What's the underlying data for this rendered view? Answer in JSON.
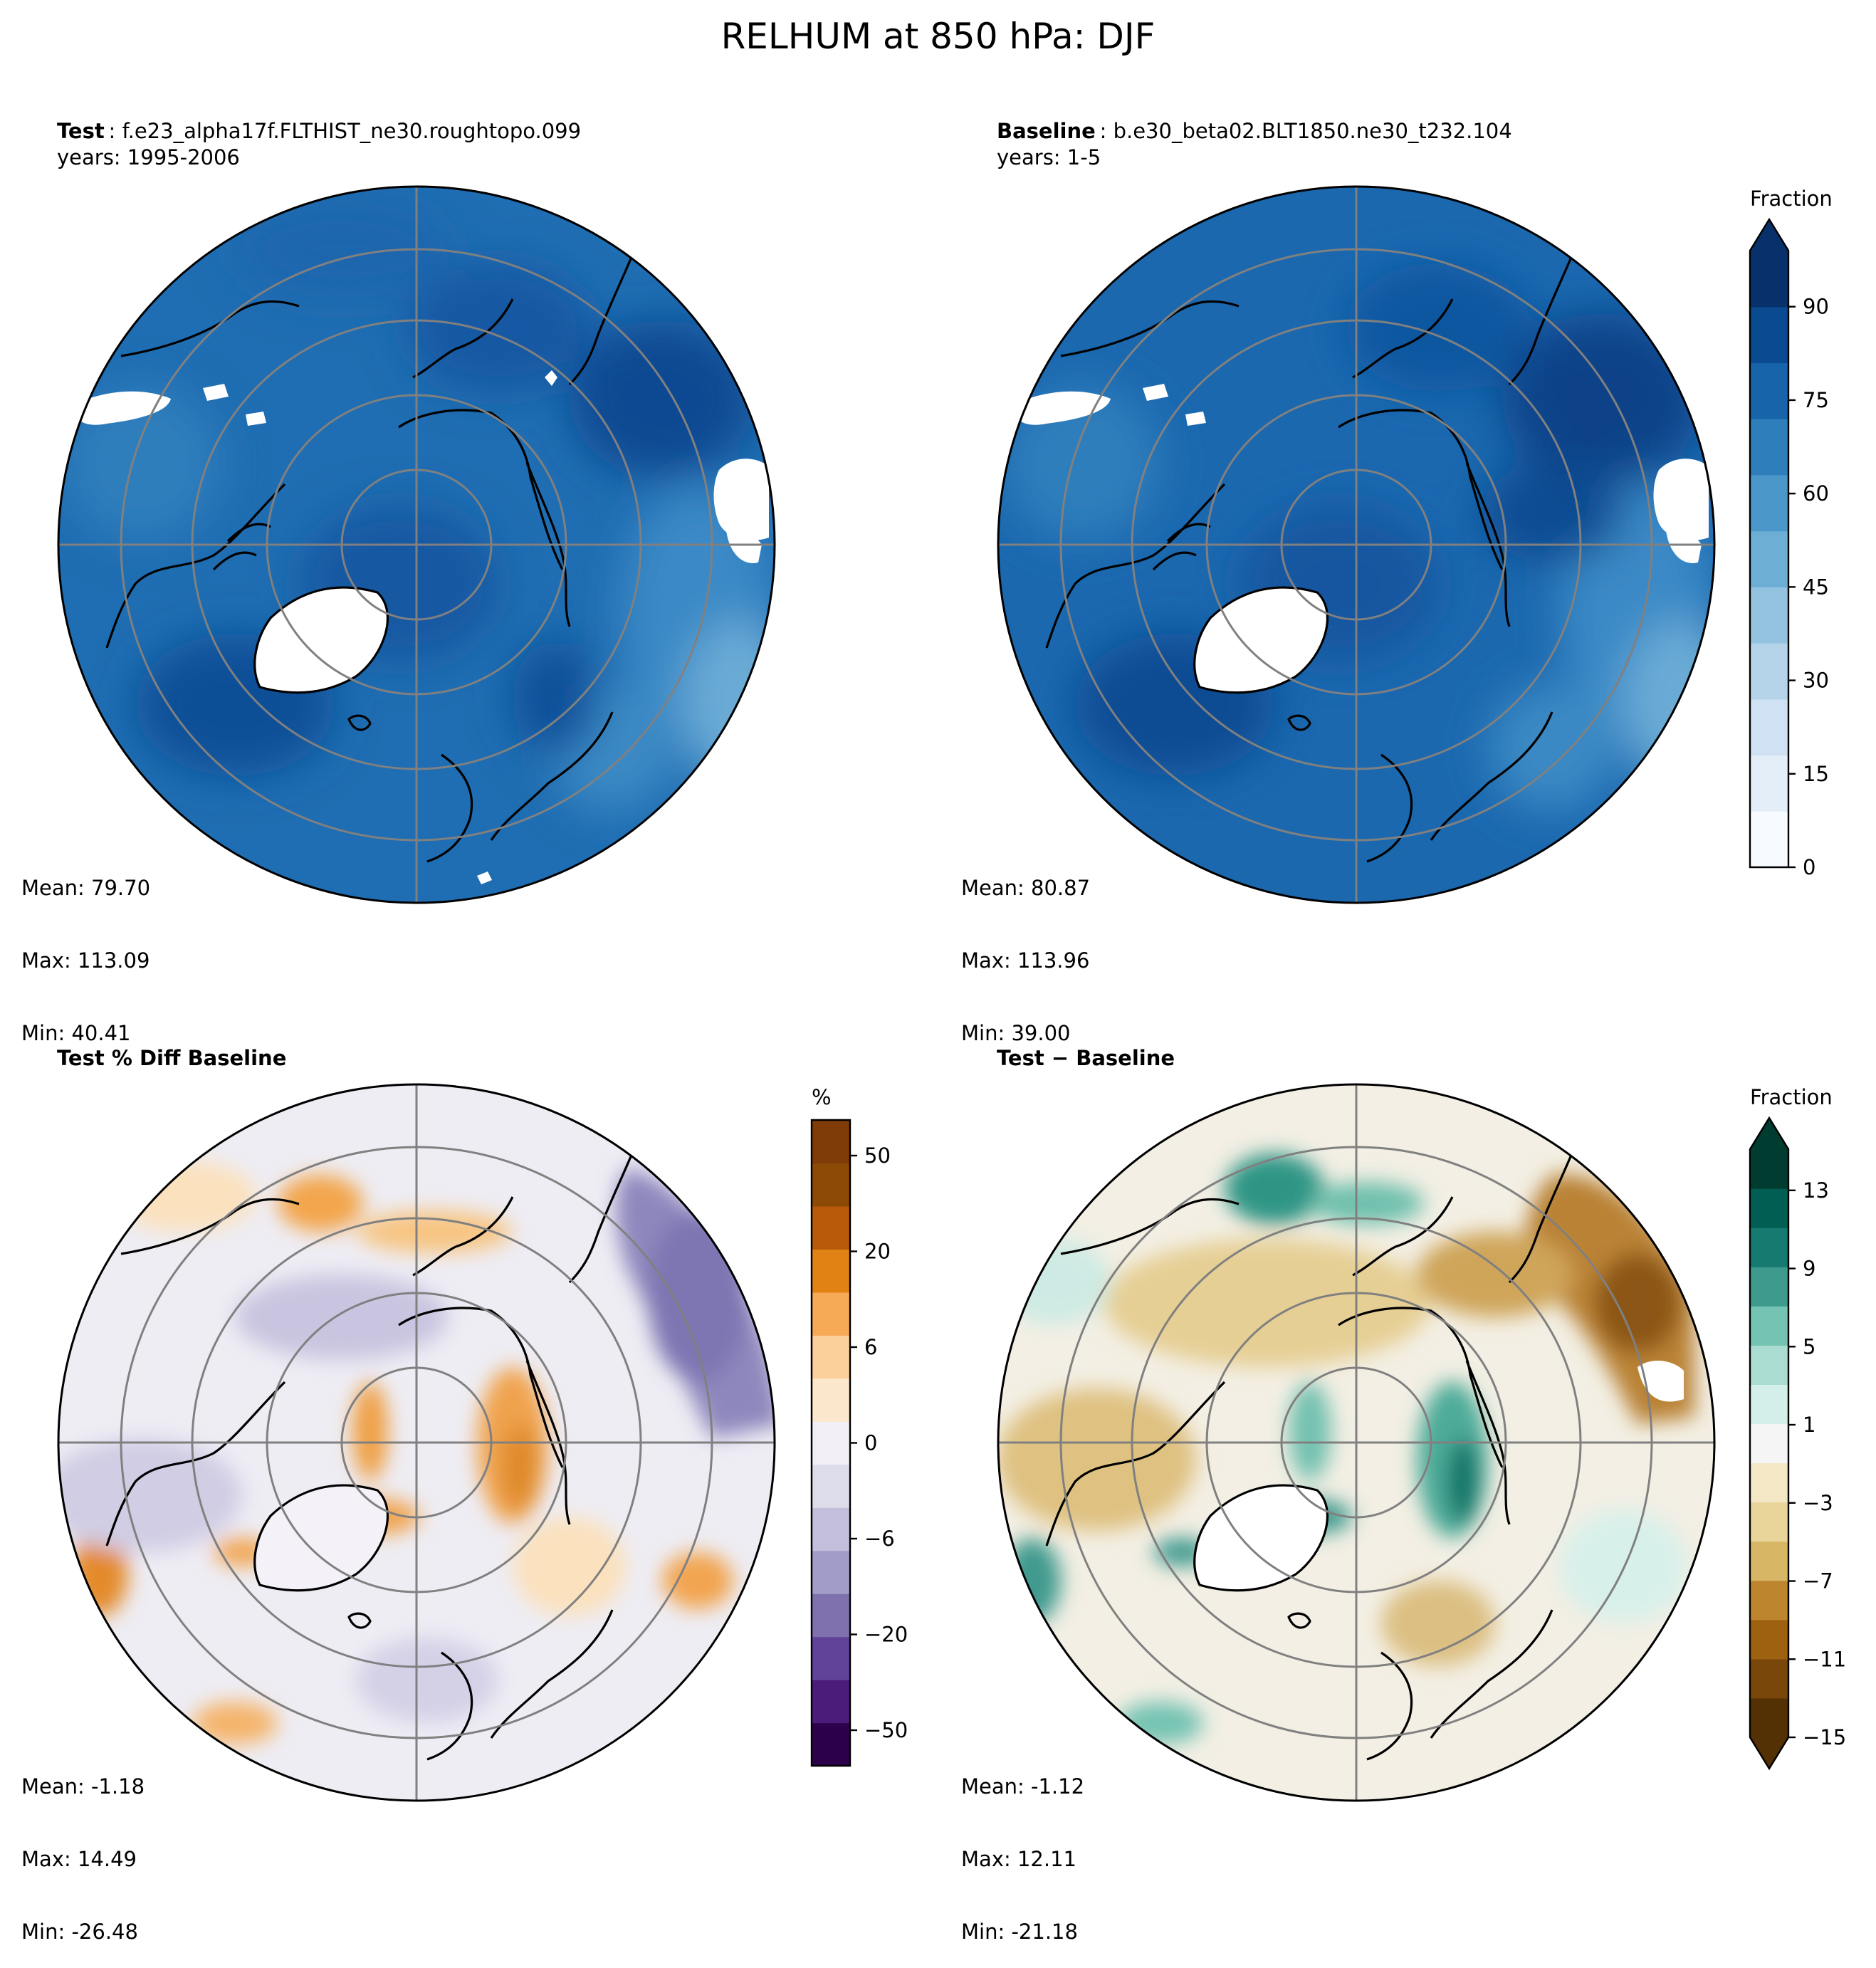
{
  "suptitle": "RELHUM at 850 hPa: DJF",
  "panels": [
    {
      "id": "test",
      "title_bold": "Test",
      "title_rest": "f.e23_alpha17f.FLTHIST_ne30.roughtopo.099",
      "years": "years: 1995-2006",
      "stats": {
        "mean": "Mean: 79.70",
        "max": "Max: 113.09",
        "min": "Min: 40.41"
      },
      "colormap": "Blues"
    },
    {
      "id": "baseline",
      "title_bold": "Baseline",
      "title_rest": "b.e30_beta02.BLT1850.ne30_t232.104",
      "years": "years: 1-5",
      "stats": {
        "mean": "Mean: 80.87",
        "max": "Max: 113.96",
        "min": "Min: 39.00"
      },
      "colormap": "Blues"
    },
    {
      "id": "pctdiff",
      "title_bold": "Test % Diff Baseline",
      "title_rest": "",
      "years": "",
      "stats": {
        "mean": "Mean: -1.18",
        "max": "Max: 14.49",
        "min": "Min: -26.48"
      },
      "colormap": "PuOr"
    },
    {
      "id": "diff",
      "title_bold": "Test − Baseline",
      "title_rest": "",
      "years": "",
      "stats": {
        "mean": "Mean: -1.12",
        "max": "Max: 12.11",
        "min": "Min: -21.18"
      },
      "colormap": "BrBG"
    }
  ],
  "colorbars": [
    {
      "id": "cb-fraction-top",
      "label": "Fraction",
      "ticks": [
        "0",
        "15",
        "30",
        "45",
        "60",
        "75",
        "90"
      ],
      "colors": [
        "#f7fbff",
        "#e3eef9",
        "#cfe1f2",
        "#b5d4e9",
        "#93c3df",
        "#6daed5",
        "#4b97c9",
        "#2f7ebc",
        "#1864aa",
        "#0a4a90",
        "#08306b"
      ]
    },
    {
      "id": "cb-percent",
      "label": "%",
      "ticks": [
        "−50",
        "−20",
        "−6",
        "0",
        "6",
        "20",
        "50"
      ],
      "colors": [
        "#2d004b",
        "#4b1c7a",
        "#62439a",
        "#7f71ad",
        "#a29dc8",
        "#c3bedb",
        "#dddceb",
        "#f1eef6",
        "#fbe7cb",
        "#fcd09a",
        "#f6aa55",
        "#e08214",
        "#b85a09",
        "#8c4a06",
        "#7f3b08"
      ]
    },
    {
      "id": "cb-fraction-diff",
      "label": "Fraction",
      "ticks": [
        "−15",
        "−11",
        "−7",
        "−3",
        "1",
        "5",
        "9",
        "13"
      ],
      "colors": [
        "#543005",
        "#7a470a",
        "#9e610f",
        "#bd852e",
        "#d7b665",
        "#e9d49a",
        "#f4e7c6",
        "#f5f5f5",
        "#d4eeea",
        "#aadcd1",
        "#75c3b3",
        "#3f9a8e",
        "#167a70",
        "#005e52",
        "#003c30"
      ]
    }
  ]
}
